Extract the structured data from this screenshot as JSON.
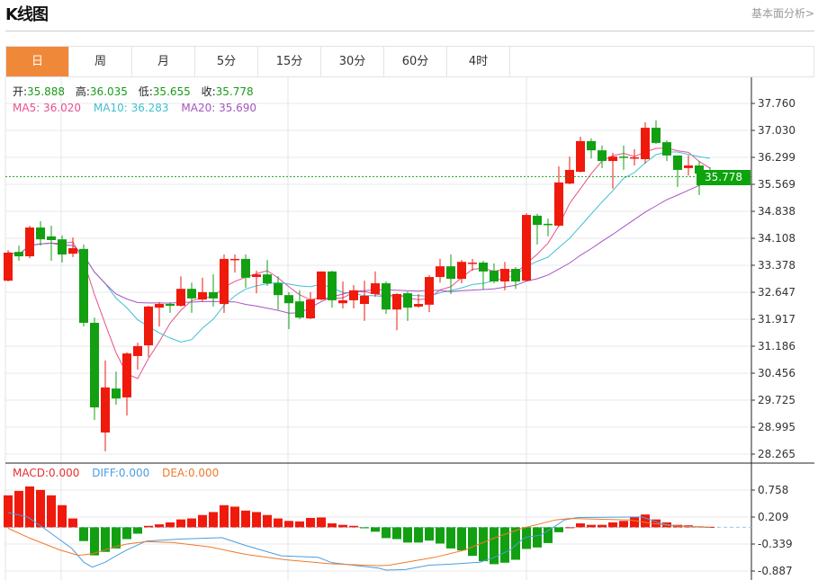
{
  "header": {
    "title": "K线图",
    "link": "基本面分析>"
  },
  "tabs": [
    {
      "label": "日",
      "active": true
    },
    {
      "label": "周"
    },
    {
      "label": "月"
    },
    {
      "label": "5分"
    },
    {
      "label": "15分"
    },
    {
      "label": "30分"
    },
    {
      "label": "60分"
    },
    {
      "label": "4时"
    }
  ],
  "legend": {
    "open_label": "开:",
    "open": "35.888",
    "high_label": "高:",
    "high": "36.035",
    "low_label": "低:",
    "low": "35.655",
    "close_label": "收:",
    "close": "35.778",
    "ma5": "MA5: 36.020",
    "ma10": "MA10: 36.283",
    "ma20": "MA20: 35.690"
  },
  "macd_legend": {
    "macd": "MACD:0.000",
    "diff": "DIFF:0.000",
    "dea": "DEA:0.000"
  },
  "current_price": "35.778",
  "colors": {
    "up": "#ef1a0c",
    "down": "#12a012",
    "ma5": "#e8508e",
    "ma10": "#3fc0d0",
    "ma20": "#a655c0",
    "diff": "#4a9ee0",
    "dea": "#f07a2a",
    "accent": "#f0883a"
  },
  "chart_data": {
    "type": "candlestick",
    "price_ticks": [
      "37.760",
      "37.030",
      "36.299",
      "35.569",
      "34.838",
      "34.108",
      "33.378",
      "32.647",
      "31.917",
      "31.186",
      "30.456",
      "29.725",
      "28.995",
      "28.265"
    ],
    "price_range": [
      28.265,
      37.76
    ],
    "macd_ticks": [
      "0.758",
      "0.209",
      "-0.339",
      "-0.887"
    ],
    "macd_range": [
      -1.161,
      1.032
    ],
    "ohlc": [
      [
        32.96,
        33.79,
        32.94,
        33.72
      ],
      [
        33.74,
        33.91,
        33.5,
        33.62
      ],
      [
        33.62,
        34.45,
        33.57,
        34.4
      ],
      [
        34.4,
        34.57,
        33.91,
        34.08
      ],
      [
        34.16,
        34.45,
        33.5,
        34.06
      ],
      [
        34.08,
        34.18,
        33.45,
        33.67
      ],
      [
        33.69,
        34.13,
        33.6,
        33.84
      ],
      [
        33.82,
        33.94,
        31.72,
        31.82
      ],
      [
        31.82,
        31.96,
        29.19,
        29.53
      ],
      [
        28.85,
        30.8,
        28.34,
        30.07
      ],
      [
        30.04,
        30.5,
        29.6,
        29.77
      ],
      [
        29.8,
        31.02,
        29.31,
        30.99
      ],
      [
        30.92,
        31.28,
        30.55,
        31.19
      ],
      [
        31.21,
        32.28,
        30.89,
        32.26
      ],
      [
        32.23,
        32.38,
        31.72,
        32.33
      ],
      [
        32.33,
        32.38,
        32.09,
        32.28
      ],
      [
        32.28,
        33.08,
        32.26,
        32.74
      ],
      [
        32.74,
        32.91,
        32.09,
        32.48
      ],
      [
        32.45,
        33.04,
        32.4,
        32.65
      ],
      [
        32.65,
        33.13,
        32.26,
        32.48
      ],
      [
        32.33,
        33.67,
        32.09,
        33.55
      ],
      [
        33.52,
        33.67,
        33.18,
        33.55
      ],
      [
        33.55,
        33.67,
        32.77,
        33.04
      ],
      [
        33.06,
        33.23,
        32.62,
        33.13
      ],
      [
        33.13,
        33.52,
        32.82,
        32.89
      ],
      [
        32.89,
        33.08,
        32.18,
        32.57
      ],
      [
        32.57,
        32.65,
        31.65,
        32.35
      ],
      [
        32.4,
        32.7,
        31.92,
        31.96
      ],
      [
        31.94,
        32.65,
        31.92,
        32.45
      ],
      [
        32.45,
        33.21,
        32.43,
        33.21
      ],
      [
        33.21,
        33.23,
        32.23,
        32.43
      ],
      [
        32.35,
        32.94,
        32.21,
        32.43
      ],
      [
        32.43,
        32.84,
        32.21,
        32.7
      ],
      [
        32.33,
        32.96,
        31.87,
        32.55
      ],
      [
        32.6,
        33.21,
        32.52,
        32.89
      ],
      [
        32.89,
        32.94,
        32.06,
        32.18
      ],
      [
        32.18,
        32.62,
        31.62,
        32.6
      ],
      [
        32.62,
        32.67,
        31.87,
        32.23
      ],
      [
        32.26,
        32.6,
        32.23,
        32.33
      ],
      [
        32.31,
        33.11,
        32.11,
        33.06
      ],
      [
        33.06,
        33.55,
        32.91,
        33.35
      ],
      [
        33.35,
        33.67,
        32.6,
        33.01
      ],
      [
        33.01,
        33.52,
        32.89,
        33.47
      ],
      [
        33.43,
        33.55,
        33.23,
        33.45
      ],
      [
        33.45,
        33.5,
        32.72,
        33.21
      ],
      [
        33.23,
        33.43,
        32.89,
        32.94
      ],
      [
        32.94,
        33.47,
        32.7,
        33.28
      ],
      [
        33.28,
        33.33,
        32.74,
        32.94
      ],
      [
        32.96,
        34.79,
        32.94,
        34.74
      ],
      [
        34.72,
        34.77,
        33.94,
        34.47
      ],
      [
        34.5,
        34.64,
        34.16,
        34.47
      ],
      [
        34.45,
        36.06,
        34.42,
        35.62
      ],
      [
        35.59,
        36.32,
        35.57,
        35.96
      ],
      [
        35.91,
        36.86,
        35.89,
        36.74
      ],
      [
        36.74,
        36.81,
        36.27,
        36.49
      ],
      [
        36.49,
        36.62,
        36.01,
        36.2
      ],
      [
        36.2,
        36.42,
        35.45,
        36.32
      ],
      [
        36.32,
        36.62,
        35.96,
        36.3
      ],
      [
        36.27,
        36.52,
        36.08,
        36.3
      ],
      [
        36.25,
        37.25,
        36.13,
        37.1
      ],
      [
        37.1,
        37.3,
        36.66,
        36.69
      ],
      [
        36.71,
        36.76,
        36.2,
        36.35
      ],
      [
        36.35,
        36.35,
        35.5,
        35.96
      ],
      [
        36.01,
        36.35,
        35.81,
        36.08
      ],
      [
        36.08,
        36.2,
        35.28,
        35.86
      ],
      [
        35.888,
        36.035,
        35.655,
        35.778
      ]
    ],
    "macd": [
      0.65,
      0.74,
      0.83,
      0.76,
      0.65,
      0.45,
      0.18,
      -0.28,
      -0.57,
      -0.5,
      -0.43,
      -0.24,
      -0.13,
      0.03,
      0.06,
      0.1,
      0.16,
      0.18,
      0.25,
      0.31,
      0.45,
      0.42,
      0.34,
      0.31,
      0.25,
      0.18,
      0.13,
      0.12,
      0.19,
      0.2,
      0.08,
      0.05,
      0.03,
      -0.02,
      -0.09,
      -0.22,
      -0.24,
      -0.31,
      -0.31,
      -0.27,
      -0.33,
      -0.43,
      -0.47,
      -0.58,
      -0.69,
      -0.75,
      -0.72,
      -0.66,
      -0.44,
      -0.41,
      -0.32,
      -0.1,
      0.0,
      0.08,
      0.05,
      0.05,
      0.1,
      0.13,
      0.2,
      0.26,
      0.16,
      0.1,
      0.05,
      0.04,
      0.02,
      0.01
    ],
    "diff": [
      [
        0,
        0.3
      ],
      [
        1.8,
        0.21
      ],
      [
        3.4,
        -0.03
      ],
      [
        5.9,
        -0.43
      ],
      [
        7,
        -0.71
      ],
      [
        7.8,
        -0.81
      ],
      [
        9,
        -0.71
      ],
      [
        10,
        -0.58
      ],
      [
        11,
        -0.46
      ],
      [
        12.8,
        -0.28
      ],
      [
        15.9,
        -0.24
      ],
      [
        19.8,
        -0.21
      ],
      [
        22,
        -0.37
      ],
      [
        25.3,
        -0.58
      ],
      [
        28.7,
        -0.61
      ],
      [
        30,
        -0.72
      ],
      [
        34.3,
        -0.83
      ],
      [
        35,
        -0.87
      ],
      [
        36.8,
        -0.86
      ],
      [
        39,
        -0.77
      ],
      [
        41,
        -0.75
      ],
      [
        43.7,
        -0.71
      ],
      [
        45,
        -0.61
      ],
      [
        46.5,
        -0.46
      ],
      [
        47.6,
        -0.25
      ],
      [
        48,
        -0.2
      ],
      [
        49.3,
        -0.16
      ],
      [
        50.3,
        -0.03
      ],
      [
        51.5,
        0.15
      ],
      [
        52.8,
        0.2
      ],
      [
        58.7,
        0.21
      ],
      [
        60.3,
        0.09
      ],
      [
        61.5,
        0.04
      ],
      [
        63.2,
        0.01
      ],
      [
        65,
        0.0
      ]
    ],
    "dea": [
      [
        0,
        -0.02
      ],
      [
        2,
        -0.22
      ],
      [
        4.8,
        -0.46
      ],
      [
        6.5,
        -0.57
      ],
      [
        7.8,
        -0.54
      ],
      [
        9.8,
        -0.4
      ],
      [
        11,
        -0.34
      ],
      [
        12.8,
        -0.29
      ],
      [
        15.3,
        -0.31
      ],
      [
        18.7,
        -0.4
      ],
      [
        22,
        -0.55
      ],
      [
        25.7,
        -0.66
      ],
      [
        29.8,
        -0.74
      ],
      [
        34.3,
        -0.78
      ],
      [
        35.3,
        -0.77
      ],
      [
        39.5,
        -0.61
      ],
      [
        42.3,
        -0.46
      ],
      [
        45,
        -0.22
      ],
      [
        47.6,
        -0.02
      ],
      [
        50.7,
        0.15
      ],
      [
        52,
        0.18
      ],
      [
        57.6,
        0.15
      ],
      [
        59.3,
        0.09
      ],
      [
        61.5,
        0.03
      ],
      [
        65,
        0.0
      ]
    ]
  }
}
